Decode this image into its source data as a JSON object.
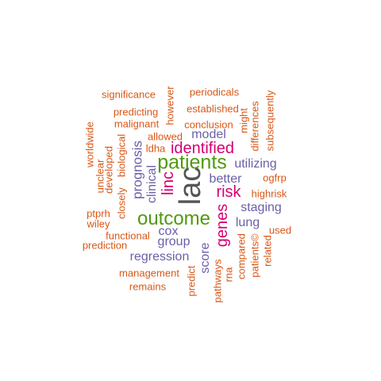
{
  "word_cloud": {
    "words": [
      {
        "id": "lac",
        "text": "lac",
        "color": "#555555"
      },
      {
        "id": "patients",
        "text": "patients",
        "color": "#4f9a0f"
      },
      {
        "id": "outcome",
        "text": "outcome",
        "color": "#4f9a0f"
      },
      {
        "id": "identified",
        "text": "identified",
        "color": "#d6006f"
      },
      {
        "id": "linc",
        "text": "linc",
        "color": "#d6006f"
      },
      {
        "id": "risk",
        "text": "risk",
        "color": "#d6006f"
      },
      {
        "id": "genes",
        "text": "genes",
        "color": "#d6006f"
      },
      {
        "id": "prognosis",
        "text": "prognosis",
        "color": "#6a60a8"
      },
      {
        "id": "clinical",
        "text": "clinical",
        "color": "#6a60a8"
      },
      {
        "id": "model",
        "text": "model",
        "color": "#6a60a8"
      },
      {
        "id": "utilizing",
        "text": "utilizing",
        "color": "#6a60a8"
      },
      {
        "id": "better",
        "text": "better",
        "color": "#6a60a8"
      },
      {
        "id": "staging",
        "text": "staging",
        "color": "#6a60a8"
      },
      {
        "id": "lung",
        "text": "lung",
        "color": "#6a60a8"
      },
      {
        "id": "cox",
        "text": "cox",
        "color": "#6a60a8"
      },
      {
        "id": "group",
        "text": "group",
        "color": "#6a60a8"
      },
      {
        "id": "regression",
        "text": "regression",
        "color": "#6a60a8"
      },
      {
        "id": "score",
        "text": "score",
        "color": "#6a60a8"
      },
      {
        "id": "significance",
        "text": "significance",
        "color": "#d95716"
      },
      {
        "id": "however",
        "text": "however",
        "color": "#d95716"
      },
      {
        "id": "periodicals",
        "text": "periodicals",
        "color": "#d95716"
      },
      {
        "id": "predicting",
        "text": "predicting",
        "color": "#d95716"
      },
      {
        "id": "established",
        "text": "established",
        "color": "#d95716"
      },
      {
        "id": "malignant",
        "text": "malignant",
        "color": "#d95716"
      },
      {
        "id": "conclusion",
        "text": "conclusion",
        "color": "#d95716"
      },
      {
        "id": "might",
        "text": "might",
        "color": "#d95716"
      },
      {
        "id": "differences",
        "text": "differences",
        "color": "#d95716"
      },
      {
        "id": "subsequently",
        "text": "subsequently",
        "color": "#d95716"
      },
      {
        "id": "allowed",
        "text": "allowed",
        "color": "#d95716"
      },
      {
        "id": "ldha",
        "text": "ldha",
        "color": "#d95716"
      },
      {
        "id": "worldwide",
        "text": "worldwide",
        "color": "#d95716"
      },
      {
        "id": "unclear",
        "text": "unclear",
        "color": "#d95716"
      },
      {
        "id": "developed",
        "text": "developed",
        "color": "#d95716"
      },
      {
        "id": "biological",
        "text": "biological",
        "color": "#d95716"
      },
      {
        "id": "closely",
        "text": "closely",
        "color": "#d95716"
      },
      {
        "id": "ogfrp",
        "text": "ogfrp",
        "color": "#d95716"
      },
      {
        "id": "highrisk",
        "text": "highrisk",
        "color": "#d95716"
      },
      {
        "id": "ptprh",
        "text": "ptprh",
        "color": "#d95716"
      },
      {
        "id": "wiley",
        "text": "wiley",
        "color": "#d95716"
      },
      {
        "id": "functional",
        "text": "functional",
        "color": "#d95716"
      },
      {
        "id": "prediction",
        "text": "prediction",
        "color": "#d95716"
      },
      {
        "id": "used",
        "text": "used",
        "color": "#d95716"
      },
      {
        "id": "related",
        "text": "related",
        "color": "#d95716"
      },
      {
        "id": "patients_c",
        "text": "patients©",
        "color": "#d95716"
      },
      {
        "id": "compared",
        "text": "compared",
        "color": "#d95716"
      },
      {
        "id": "rna",
        "text": "rna",
        "color": "#d95716"
      },
      {
        "id": "pathways",
        "text": "pathways",
        "color": "#d95716"
      },
      {
        "id": "predict",
        "text": "predict",
        "color": "#d95716"
      },
      {
        "id": "management",
        "text": "management",
        "color": "#d95716"
      },
      {
        "id": "remains",
        "text": "remains",
        "color": "#d95716"
      }
    ]
  }
}
